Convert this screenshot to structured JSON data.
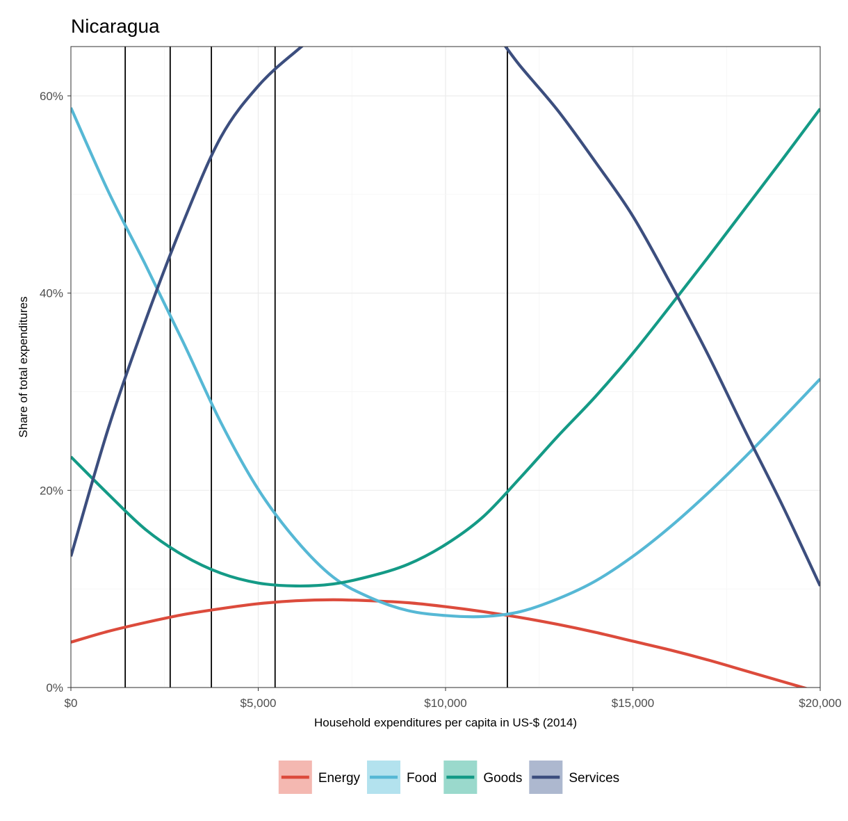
{
  "chart_data": {
    "type": "line",
    "title": "Nicaragua",
    "xlabel": "Household expenditures per capita in US-$ (2014)",
    "ylabel": "Share of total expenditures",
    "xlim": [
      0,
      20000
    ],
    "ylim": [
      0,
      0.65
    ],
    "x_ticks": [
      0,
      5000,
      10000,
      15000,
      20000
    ],
    "x_tick_labels": [
      "$0",
      "$5,000",
      "$10,000",
      "$15,000",
      "$20,000"
    ],
    "y_ticks": [
      0,
      0.2,
      0.4,
      0.6
    ],
    "y_tick_labels": [
      "0%",
      "20%",
      "40%",
      "60%"
    ],
    "grid": true,
    "legend_position": "bottom",
    "vertical_lines": [
      1450,
      2650,
      3750,
      5450,
      11650
    ],
    "series": [
      {
        "name": "Energy",
        "color": "#dc4b3c",
        "legend_fill": "#f4b8b1",
        "x": [
          0,
          1000,
          2000,
          3000,
          4000,
          5000,
          6000,
          7000,
          8000,
          9000,
          10000,
          11000,
          12000,
          13000,
          14000,
          15000,
          16000,
          17000,
          18000,
          19000,
          20000
        ],
        "y": [
          0.046,
          0.057,
          0.066,
          0.074,
          0.08,
          0.085,
          0.088,
          0.089,
          0.088,
          0.086,
          0.082,
          0.077,
          0.071,
          0.064,
          0.056,
          0.047,
          0.038,
          0.028,
          0.017,
          0.006,
          -0.005
        ]
      },
      {
        "name": "Food",
        "color": "#56b8d5",
        "legend_fill": "#b3e2ee",
        "x": [
          0,
          1000,
          2000,
          3000,
          4000,
          5000,
          6000,
          7000,
          8000,
          9000,
          10000,
          11000,
          12000,
          13000,
          14000,
          15000,
          16000,
          17000,
          18000,
          19000,
          20000
        ],
        "y": [
          0.588,
          0.503,
          0.428,
          0.35,
          0.269,
          0.201,
          0.15,
          0.112,
          0.091,
          0.078,
          0.073,
          0.072,
          0.077,
          0.09,
          0.108,
          0.133,
          0.163,
          0.197,
          0.234,
          0.273,
          0.313
        ]
      },
      {
        "name": "Goods",
        "color": "#149a86",
        "legend_fill": "#9ad9cc",
        "x": [
          0,
          1000,
          2000,
          3000,
          4000,
          5000,
          6000,
          7000,
          8000,
          9000,
          10000,
          11000,
          12000,
          13000,
          14000,
          15000,
          16000,
          17000,
          18000,
          19000,
          20000
        ],
        "y": [
          0.234,
          0.196,
          0.16,
          0.134,
          0.116,
          0.106,
          0.103,
          0.105,
          0.113,
          0.125,
          0.145,
          0.173,
          0.213,
          0.255,
          0.295,
          0.339,
          0.387,
          0.436,
          0.486,
          0.536,
          0.587
        ]
      },
      {
        "name": "Services",
        "color": "#3c4e7e",
        "legend_fill": "#adb8cf",
        "x": [
          0,
          1000,
          2000,
          3000,
          4000,
          5000,
          6000,
          7000,
          8000,
          9000,
          10000,
          11000,
          12000,
          13000,
          14000,
          15000,
          16000,
          17000,
          18000,
          19000,
          20000
        ],
        "y": [
          0.133,
          0.263,
          0.373,
          0.472,
          0.558,
          0.61,
          0.645,
          0.674,
          0.692,
          0.699,
          0.694,
          0.677,
          0.63,
          0.585,
          0.533,
          0.478,
          0.41,
          0.338,
          0.26,
          0.184,
          0.103
        ]
      }
    ]
  }
}
